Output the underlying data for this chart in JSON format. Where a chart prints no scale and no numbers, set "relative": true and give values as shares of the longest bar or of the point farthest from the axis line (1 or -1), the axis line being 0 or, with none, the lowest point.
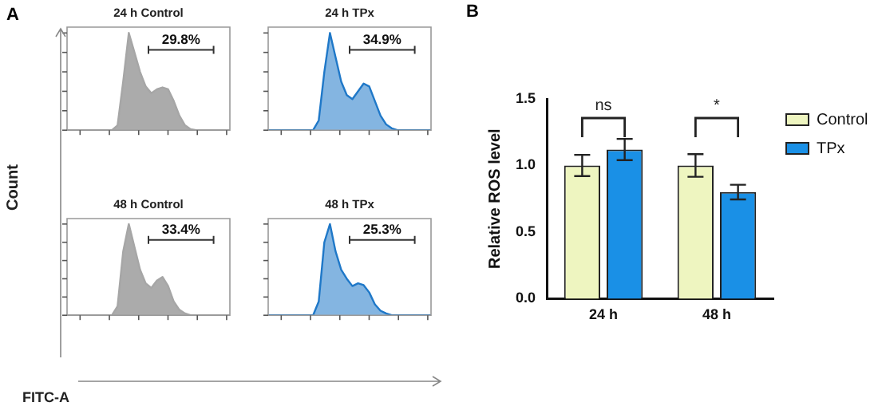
{
  "chart_data": [
    {
      "type": "area",
      "title": "24 h Control",
      "relative": true,
      "ylabel": "Count",
      "annotations": [
        "A",
        "29.8%"
      ],
      "categories": [
        null,
        null,
        null,
        null,
        null,
        null,
        null,
        null,
        null,
        null,
        null,
        null,
        null,
        null,
        null,
        null,
        null,
        null,
        null,
        null,
        null,
        null,
        null,
        null,
        null,
        null,
        null,
        null,
        null,
        null
      ],
      "series": [
        {
          "color": "#a6a6a6",
          "values": [
            0,
            0,
            0,
            0,
            0,
            0,
            0,
            0,
            0,
            0.05,
            0.5,
            1.0,
            0.8,
            0.6,
            0.45,
            0.38,
            0.42,
            0.44,
            0.42,
            0.3,
            0.15,
            0.05,
            0.01,
            0,
            0,
            0,
            0,
            0,
            0,
            0
          ]
        }
      ]
    },
    {
      "type": "area",
      "title": "24 h TPx",
      "relative": true,
      "annotations": [
        "34.9%"
      ],
      "categories": [
        null,
        null,
        null,
        null,
        null,
        null,
        null,
        null,
        null,
        null,
        null,
        null,
        null,
        null,
        null,
        null,
        null,
        null,
        null,
        null,
        null,
        null,
        null,
        null,
        null,
        null,
        null,
        null,
        null,
        null
      ],
      "series": [
        {
          "color": "#1f78c8",
          "values": [
            0,
            0,
            0,
            0,
            0,
            0,
            0,
            0,
            0,
            0.1,
            0.6,
            1.0,
            0.75,
            0.5,
            0.36,
            0.32,
            0.4,
            0.48,
            0.45,
            0.3,
            0.15,
            0.06,
            0.02,
            0,
            0,
            0,
            0,
            0,
            0,
            0
          ]
        }
      ]
    },
    {
      "type": "area",
      "title": "48 h Control",
      "relative": true,
      "xlabel": "FITC-A",
      "annotations": [
        "33.4%"
      ],
      "categories": [
        null,
        null,
        null,
        null,
        null,
        null,
        null,
        null,
        null,
        null,
        null,
        null,
        null,
        null,
        null,
        null,
        null,
        null,
        null,
        null,
        null,
        null,
        null,
        null,
        null,
        null,
        null,
        null,
        null,
        null
      ],
      "series": [
        {
          "color": "#a6a6a6",
          "values": [
            0,
            0,
            0,
            0,
            0,
            0,
            0,
            0,
            0,
            0.1,
            0.7,
            1.0,
            0.75,
            0.5,
            0.35,
            0.3,
            0.38,
            0.42,
            0.32,
            0.15,
            0.06,
            0.02,
            0,
            0,
            0,
            0,
            0,
            0,
            0,
            0
          ]
        }
      ]
    },
    {
      "type": "area",
      "title": "48 h TPx",
      "relative": true,
      "annotations": [
        "25.3%"
      ],
      "categories": [
        null,
        null,
        null,
        null,
        null,
        null,
        null,
        null,
        null,
        null,
        null,
        null,
        null,
        null,
        null,
        null,
        null,
        null,
        null,
        null,
        null,
        null,
        null,
        null,
        null,
        null,
        null,
        null,
        null,
        null
      ],
      "series": [
        {
          "color": "#1f78c8",
          "values": [
            0,
            0,
            0,
            0,
            0,
            0,
            0,
            0,
            0,
            0.15,
            0.8,
            1.0,
            0.7,
            0.5,
            0.4,
            0.32,
            0.35,
            0.33,
            0.25,
            0.12,
            0.05,
            0.02,
            0,
            0,
            0,
            0,
            0,
            0,
            0,
            0
          ]
        }
      ]
    },
    {
      "type": "bar",
      "ylabel": "Relative ROS level",
      "categories": [
        "24 h",
        "48 h"
      ],
      "ylim": [
        0,
        1.5
      ],
      "yticks": [
        {
          "value": 0,
          "label": "0.0"
        },
        {
          "value": 0.5,
          "label": "0.5"
        },
        {
          "value": 1,
          "label": "1.0"
        },
        {
          "value": 1.5,
          "label": "1.5"
        }
      ],
      "grid": false,
      "legend": "right",
      "annotations": [
        "B",
        "ns",
        "*"
      ],
      "series": [
        {
          "name": "Control",
          "color": "#eef5c0",
          "values": [
            1.0,
            1.0
          ],
          "errors": [
            0.08,
            0.085
          ]
        },
        {
          "name": "TPx",
          "color": "#1a90e6",
          "values": [
            1.12,
            0.8
          ],
          "errors": [
            0.08,
            0.055
          ]
        }
      ]
    }
  ]
}
